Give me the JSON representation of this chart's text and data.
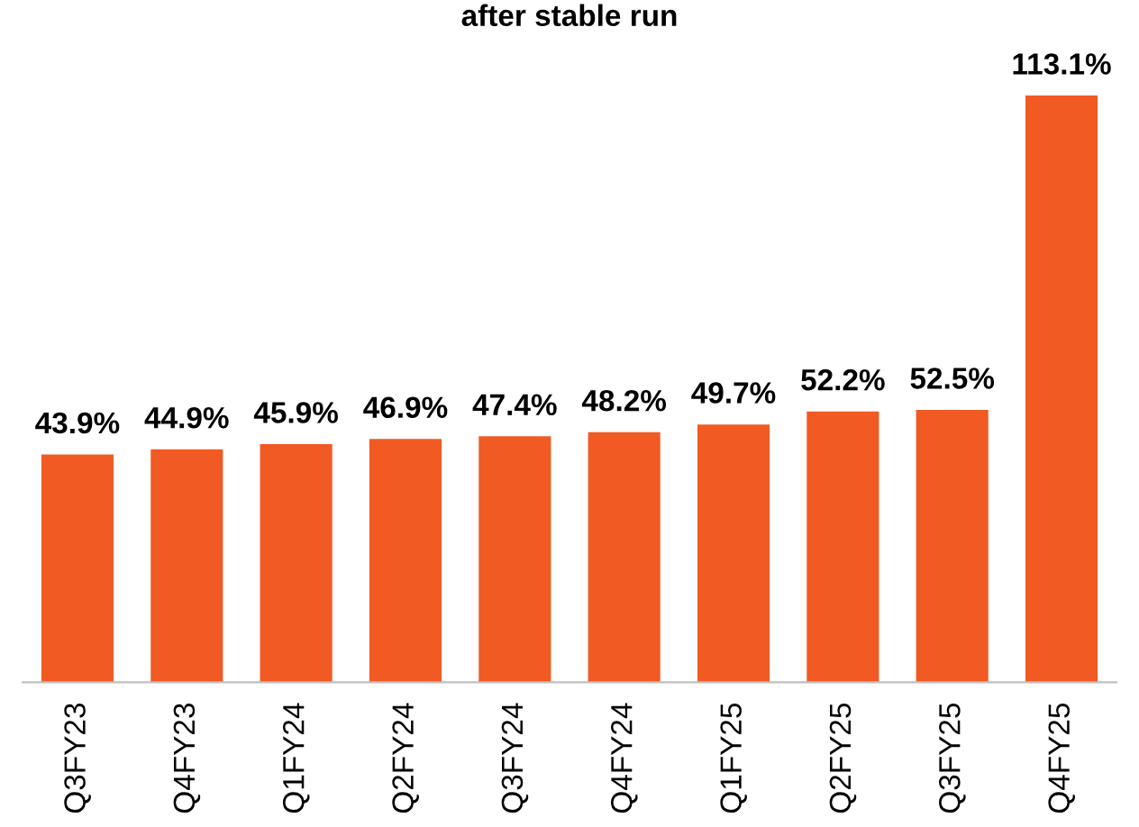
{
  "chart_data": {
    "type": "bar",
    "title": "after stable run",
    "categories": [
      "Q3FY23",
      "Q4FY23",
      "Q1FY24",
      "Q2FY24",
      "Q3FY24",
      "Q4FY24",
      "Q1FY25",
      "Q2FY25",
      "Q3FY25",
      "Q4FY25"
    ],
    "values": [
      43.9,
      44.9,
      45.9,
      46.9,
      47.4,
      48.2,
      49.7,
      52.2,
      52.5,
      113.1
    ],
    "value_labels": [
      "43.9%",
      "44.9%",
      "45.9%",
      "46.9%",
      "47.4%",
      "48.2%",
      "49.7%",
      "52.2%",
      "52.5%",
      "113.1%"
    ],
    "color": "#f15a22",
    "grid": false,
    "legend": false
  }
}
